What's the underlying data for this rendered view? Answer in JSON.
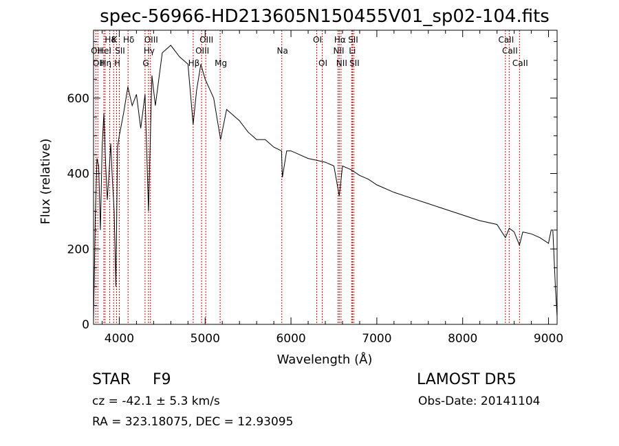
{
  "chart_data": {
    "type": "line",
    "title": "spec-56966-HD213605N150455V01_sp02-104.fits",
    "xlabel": "Wavelength (Å)",
    "ylabel": "Flux (relative)",
    "xlim": [
      3700,
      9100
    ],
    "ylim": [
      0,
      780
    ],
    "xticks": [
      4000,
      5000,
      6000,
      7000,
      8000,
      9000
    ],
    "yticks": [
      0,
      200,
      400,
      600
    ],
    "grid": false,
    "line_color": "#000000",
    "marker_color": "#cc0000",
    "spectrum": {
      "x": [
        3700,
        3720,
        3740,
        3760,
        3780,
        3800,
        3820,
        3840,
        3860,
        3880,
        3900,
        3920,
        3940,
        3960,
        3980,
        4000,
        4050,
        4100,
        4150,
        4200,
        4250,
        4300,
        4340,
        4380,
        4420,
        4500,
        4600,
        4700,
        4800,
        4860,
        4900,
        4950,
        5000,
        5100,
        5180,
        5250,
        5300,
        5400,
        5500,
        5600,
        5700,
        5800,
        5890,
        5900,
        5950,
        6000,
        6100,
        6200,
        6300,
        6400,
        6500,
        6563,
        6600,
        6700,
        6800,
        6900,
        7000,
        7200,
        7400,
        7600,
        7800,
        8000,
        8200,
        8400,
        8498,
        8542,
        8600,
        8662,
        8700,
        8800,
        8900,
        9000,
        9030,
        9050,
        9080,
        9100
      ],
      "y": [
        10,
        280,
        440,
        420,
        250,
        470,
        560,
        430,
        330,
        400,
        480,
        380,
        300,
        100,
        470,
        500,
        560,
        630,
        580,
        610,
        520,
        610,
        300,
        660,
        580,
        720,
        740,
        710,
        690,
        530,
        620,
        690,
        650,
        600,
        490,
        570,
        560,
        540,
        510,
        490,
        490,
        470,
        460,
        390,
        460,
        460,
        450,
        440,
        435,
        430,
        420,
        340,
        420,
        410,
        395,
        385,
        370,
        350,
        335,
        320,
        305,
        290,
        275,
        265,
        230,
        255,
        245,
        210,
        245,
        240,
        230,
        215,
        250,
        250,
        100,
        20
      ]
    },
    "lines": [
      {
        "wavelength": 3727,
        "label": "OII",
        "row": 2
      },
      {
        "wavelength": 3750,
        "label": "OII",
        "row": 3
      },
      {
        "wavelength": 3820,
        "label": "HeI",
        "row": 2
      },
      {
        "wavelength": 3835,
        "label": "Hη",
        "row": 3
      },
      {
        "wavelength": 3889,
        "label": "Hδ",
        "row": 1
      },
      {
        "wavelength": 3934,
        "label": "K",
        "row": 1
      },
      {
        "wavelength": 3968,
        "label": "H",
        "row": 3
      },
      {
        "wavelength": 4000,
        "label": "SII",
        "row": 2
      },
      {
        "wavelength": 4102,
        "label": "Hδ",
        "row": 1
      },
      {
        "wavelength": 4300,
        "label": "G",
        "row": 3
      },
      {
        "wavelength": 4340,
        "label": "Hγ",
        "row": 2
      },
      {
        "wavelength": 4363,
        "label": "OIII",
        "row": 1
      },
      {
        "wavelength": 4861,
        "label": "Hβ",
        "row": 3
      },
      {
        "wavelength": 4959,
        "label": "OIII",
        "row": 2
      },
      {
        "wavelength": 5007,
        "label": "OIII",
        "row": 1
      },
      {
        "wavelength": 5175,
        "label": "Mg",
        "row": 3
      },
      {
        "wavelength": 5893,
        "label": "Na",
        "row": 2
      },
      {
        "wavelength": 6300,
        "label": "OI",
        "row": 1
      },
      {
        "wavelength": 6364,
        "label": "OI",
        "row": 3
      },
      {
        "wavelength": 6548,
        "label": "NII",
        "row": 2
      },
      {
        "wavelength": 6563,
        "label": "Hα",
        "row": 1
      },
      {
        "wavelength": 6583,
        "label": "NII",
        "row": 3
      },
      {
        "wavelength": 6707,
        "label": "Li",
        "row": 2
      },
      {
        "wavelength": 6716,
        "label": "SII",
        "row": 1
      },
      {
        "wavelength": 6731,
        "label": "SII",
        "row": 3
      },
      {
        "wavelength": 8498,
        "label": "CaII",
        "row": 1
      },
      {
        "wavelength": 8542,
        "label": "CaII",
        "row": 2
      },
      {
        "wavelength": 8662,
        "label": "CaII",
        "row": 3
      }
    ]
  },
  "info": {
    "object_class": "STAR",
    "subclass": "F9",
    "survey": "LAMOST  DR5",
    "velocity": "cz = -42.1 ± 5.3 km/s",
    "obs_date": "Obs-Date: 20141104",
    "coords": "RA = 323.18075, DEC =  12.93095"
  }
}
